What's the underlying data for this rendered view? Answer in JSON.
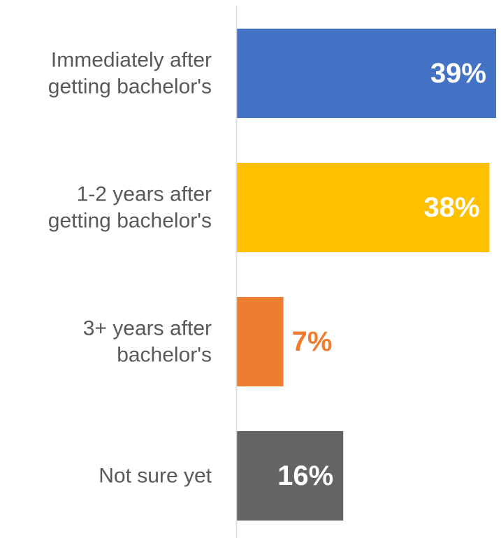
{
  "chart_data": {
    "type": "bar",
    "orientation": "horizontal",
    "categories": [
      [
        "Immediately after",
        "getting bachelor's"
      ],
      [
        "1-2 years after",
        "getting bachelor's"
      ],
      [
        "3+ years after",
        "bachelor's"
      ],
      [
        "Not sure yet"
      ]
    ],
    "values": [
      39,
      38,
      7,
      16
    ],
    "value_labels": [
      "39%",
      "38%",
      "7%",
      "16%"
    ],
    "xlim": [
      0,
      39
    ],
    "grid": false,
    "legend": "none",
    "colors": {
      "bars": [
        "#4472C4",
        "#FFC000",
        "#ED7D31",
        "#646464"
      ],
      "label_inside": "#FFFFFF",
      "label_outside": "#ED7D31",
      "axis_line": "#D9D9D9",
      "category_text": "#595959"
    }
  }
}
